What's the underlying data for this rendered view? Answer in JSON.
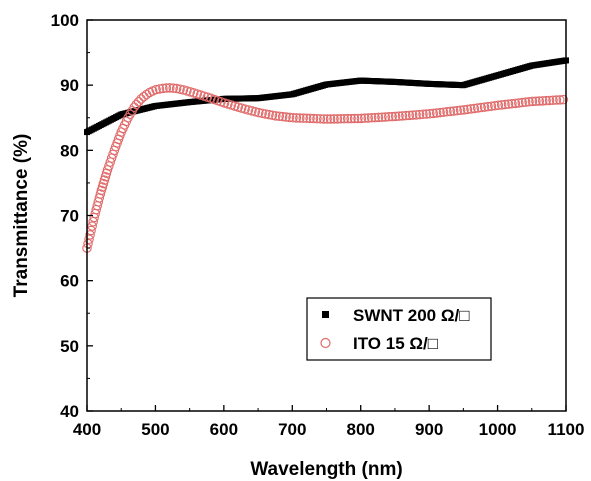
{
  "chart_data": {
    "type": "scatter",
    "title": "",
    "xlabel": "Wavelength (nm)",
    "ylabel": "Transmittance (%)",
    "xlim": [
      400,
      1100
    ],
    "ylim": [
      40,
      100
    ],
    "xticks": [
      400,
      500,
      600,
      700,
      800,
      900,
      1000,
      1100
    ],
    "yticks": [
      40,
      50,
      60,
      70,
      80,
      90,
      100
    ],
    "grid": false,
    "legend_position": "lower-right",
    "series": [
      {
        "name": "SWNT 200 Ω/□",
        "marker": "filled-square",
        "color": "#000000",
        "x": [
          400,
          450,
          500,
          550,
          600,
          650,
          700,
          750,
          800,
          850,
          900,
          950,
          1000,
          1050,
          1100
        ],
        "y": [
          82.8,
          85.5,
          86.8,
          87.4,
          87.9,
          88.0,
          88.6,
          90.1,
          90.7,
          90.5,
          90.2,
          90.0,
          91.5,
          93.0,
          93.8
        ]
      },
      {
        "name": "ITO 15 Ω/□",
        "marker": "open-circle",
        "color": "#e06a6a",
        "x": [
          400,
          410,
          420,
          430,
          440,
          450,
          460,
          470,
          480,
          490,
          500,
          510,
          520,
          530,
          540,
          550,
          575,
          600,
          625,
          650,
          675,
          700,
          750,
          800,
          850,
          900,
          950,
          1000,
          1050,
          1100
        ],
        "y": [
          65.0,
          69.5,
          73.5,
          77.0,
          80.0,
          82.8,
          85.0,
          86.8,
          88.0,
          88.8,
          89.3,
          89.5,
          89.6,
          89.5,
          89.3,
          89.0,
          88.2,
          87.3,
          86.5,
          85.8,
          85.3,
          85.0,
          84.8,
          84.9,
          85.2,
          85.6,
          86.2,
          86.9,
          87.5,
          87.8
        ]
      }
    ]
  }
}
